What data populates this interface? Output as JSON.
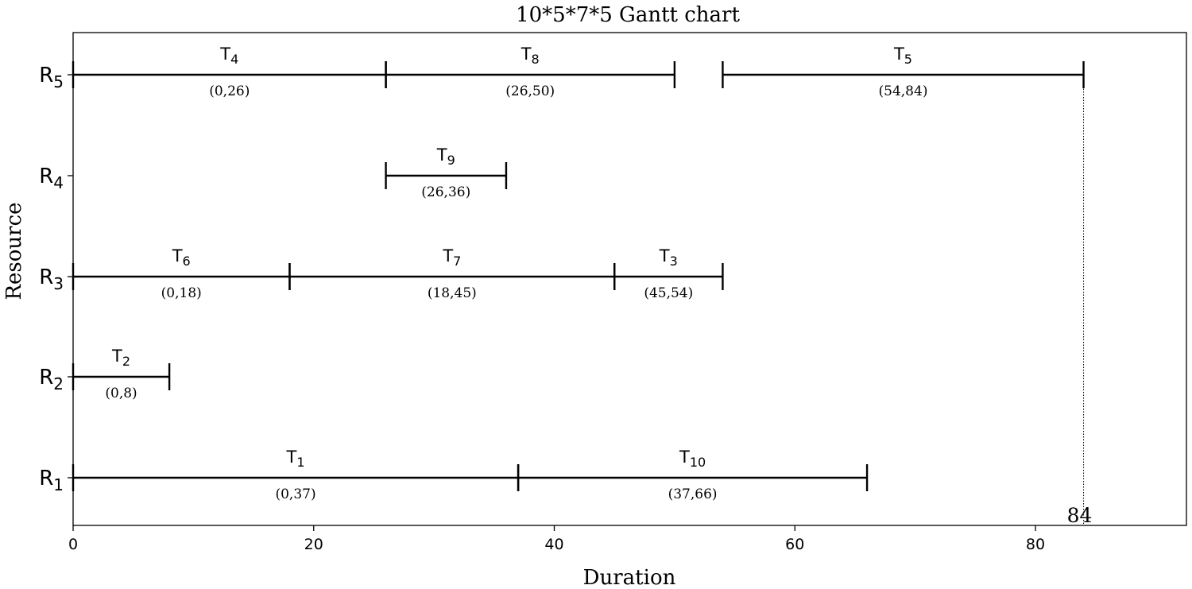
{
  "chart_data": {
    "type": "gantt",
    "title": "10*5*7*5 Gantt chart",
    "xlabel": "Duration",
    "ylabel": "Resource",
    "xlim": [
      0,
      92
    ],
    "xticks": [
      0,
      20,
      40,
      60,
      80
    ],
    "resources": [
      {
        "id": "R1",
        "letter": "R",
        "sub": "1"
      },
      {
        "id": "R2",
        "letter": "R",
        "sub": "2"
      },
      {
        "id": "R3",
        "letter": "R",
        "sub": "3"
      },
      {
        "id": "R4",
        "letter": "R",
        "sub": "4"
      },
      {
        "id": "R5",
        "letter": "R",
        "sub": "5"
      }
    ],
    "tasks": [
      {
        "name": "T",
        "sub": "1",
        "resource": "R1",
        "start": 0,
        "end": 37,
        "range_label": "(0,37)"
      },
      {
        "name": "T",
        "sub": "10",
        "resource": "R1",
        "start": 37,
        "end": 66,
        "range_label": "(37,66)"
      },
      {
        "name": "T",
        "sub": "2",
        "resource": "R2",
        "start": 0,
        "end": 8,
        "range_label": "(0,8)"
      },
      {
        "name": "T",
        "sub": "6",
        "resource": "R3",
        "start": 0,
        "end": 18,
        "range_label": "(0,18)"
      },
      {
        "name": "T",
        "sub": "7",
        "resource": "R3",
        "start": 18,
        "end": 45,
        "range_label": "(18,45)"
      },
      {
        "name": "T",
        "sub": "3",
        "resource": "R3",
        "start": 45,
        "end": 54,
        "range_label": "(45,54)"
      },
      {
        "name": "T",
        "sub": "9",
        "resource": "R4",
        "start": 26,
        "end": 36,
        "range_label": "(26,36)"
      },
      {
        "name": "T",
        "sub": "4",
        "resource": "R5",
        "start": 0,
        "end": 26,
        "range_label": "(0,26)"
      },
      {
        "name": "T",
        "sub": "8",
        "resource": "R5",
        "start": 26,
        "end": 50,
        "range_label": "(26,50)"
      },
      {
        "name": "T",
        "sub": "5",
        "resource": "R5",
        "start": 54,
        "end": 84,
        "range_label": "(54,84)"
      }
    ],
    "makespan": 84,
    "makespan_label": "84"
  }
}
